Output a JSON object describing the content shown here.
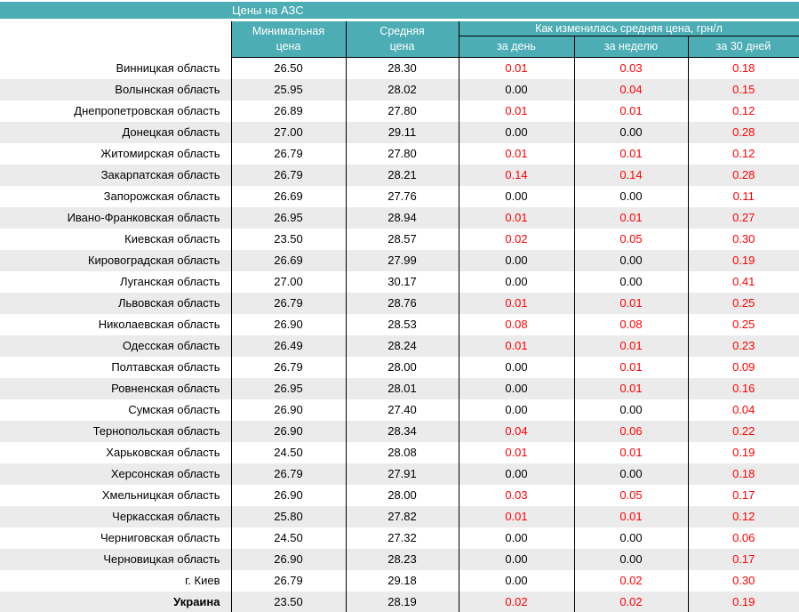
{
  "title": "Цены на АЗС",
  "colors": {
    "header_teal": "#4cadb4",
    "header_text_white": "#ffffff",
    "change_positive_red": "#ff0000",
    "value_black": "#000000",
    "row_stripe_gray": "#ebebeb",
    "grid_border_black": "#000000"
  },
  "table": {
    "headers": {
      "min_price": {
        "line1": "Минимальная",
        "line2": "цена"
      },
      "avg_price": {
        "line1": "Средняя",
        "line2": "цена"
      },
      "change_group": "Как изменилась средняя цена, грн/л",
      "change_day": "за день",
      "change_week": "за неделю",
      "change_30d": "за 30 дней"
    },
    "rows": [
      {
        "region": "Винницкая область",
        "min": "26.50",
        "avg": "28.30",
        "day": "0.01",
        "week": "0.03",
        "d30": "0.18"
      },
      {
        "region": "Волынская область",
        "min": "25.95",
        "avg": "28.02",
        "day": "0.00",
        "week": "0.04",
        "d30": "0.15"
      },
      {
        "region": "Днепропетровская область",
        "min": "26.89",
        "avg": "27.80",
        "day": "0.01",
        "week": "0.01",
        "d30": "0.12"
      },
      {
        "region": "Донецкая область",
        "min": "27.00",
        "avg": "29.11",
        "day": "0.00",
        "week": "0.00",
        "d30": "0.28"
      },
      {
        "region": "Житомирская область",
        "min": "26.79",
        "avg": "27.80",
        "day": "0.01",
        "week": "0.01",
        "d30": "0.12"
      },
      {
        "region": "Закарпатская область",
        "min": "26.79",
        "avg": "28.21",
        "day": "0.14",
        "week": "0.14",
        "d30": "0.28"
      },
      {
        "region": "Запорожская область",
        "min": "26.69",
        "avg": "27.76",
        "day": "0.00",
        "week": "0.00",
        "d30": "0.11"
      },
      {
        "region": "Ивано-Франковская область",
        "min": "26.95",
        "avg": "28.94",
        "day": "0.01",
        "week": "0.01",
        "d30": "0.27"
      },
      {
        "region": "Киевская область",
        "min": "23.50",
        "avg": "28.57",
        "day": "0.02",
        "week": "0.05",
        "d30": "0.30"
      },
      {
        "region": "Кировоградская область",
        "min": "26.69",
        "avg": "27.99",
        "day": "0.00",
        "week": "0.00",
        "d30": "0.19"
      },
      {
        "region": "Луганская область",
        "min": "27.00",
        "avg": "30.17",
        "day": "0.00",
        "week": "0.00",
        "d30": "0.41"
      },
      {
        "region": "Львовская область",
        "min": "26.79",
        "avg": "28.76",
        "day": "0.01",
        "week": "0.01",
        "d30": "0.25"
      },
      {
        "region": "Николаевская область",
        "min": "26.90",
        "avg": "28.53",
        "day": "0.08",
        "week": "0.08",
        "d30": "0.25"
      },
      {
        "region": "Одесская область",
        "min": "26.49",
        "avg": "28.24",
        "day": "0.01",
        "week": "0.01",
        "d30": "0.23"
      },
      {
        "region": "Полтавская область",
        "min": "26.79",
        "avg": "28.00",
        "day": "0.00",
        "week": "0.01",
        "d30": "0.09"
      },
      {
        "region": "Ровненская область",
        "min": "26.95",
        "avg": "28.01",
        "day": "0.00",
        "week": "0.01",
        "d30": "0.16"
      },
      {
        "region": "Сумская область",
        "min": "26.90",
        "avg": "27.40",
        "day": "0.00",
        "week": "0.00",
        "d30": "0.04"
      },
      {
        "region": "Тернопольская область",
        "min": "26.90",
        "avg": "28.34",
        "day": "0.04",
        "week": "0.06",
        "d30": "0.22"
      },
      {
        "region": "Харьковская область",
        "min": "24.50",
        "avg": "28.08",
        "day": "0.01",
        "week": "0.01",
        "d30": "0.19"
      },
      {
        "region": "Херсонская область",
        "min": "26.79",
        "avg": "27.91",
        "day": "0.00",
        "week": "0.00",
        "d30": "0.18"
      },
      {
        "region": "Хмельницкая область",
        "min": "26.90",
        "avg": "28.00",
        "day": "0.03",
        "week": "0.05",
        "d30": "0.17"
      },
      {
        "region": "Черкасская область",
        "min": "25.80",
        "avg": "27.82",
        "day": "0.01",
        "week": "0.01",
        "d30": "0.12"
      },
      {
        "region": "Черниговская область",
        "min": "24.50",
        "avg": "27.32",
        "day": "0.00",
        "week": "0.00",
        "d30": "0.06"
      },
      {
        "region": "Черновицкая область",
        "min": "26.90",
        "avg": "28.23",
        "day": "0.00",
        "week": "0.00",
        "d30": "0.17"
      },
      {
        "region": "г. Киев",
        "min": "26.79",
        "avg": "29.18",
        "day": "0.00",
        "week": "0.02",
        "d30": "0.30"
      },
      {
        "region": "Украина",
        "min": "23.50",
        "avg": "28.19",
        "day": "0.02",
        "week": "0.02",
        "d30": "0.19",
        "is_total": true
      }
    ]
  }
}
